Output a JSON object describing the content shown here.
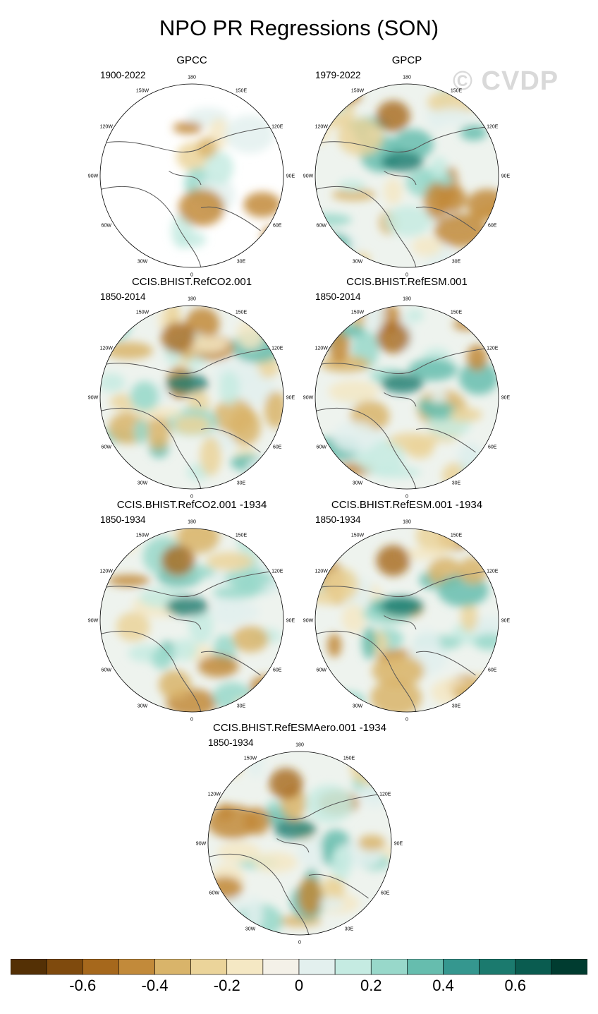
{
  "title": "NPO PR Regressions (SON)",
  "watermark": "© CVDP",
  "lon_labels": [
    "180",
    "150E",
    "120E",
    "90E",
    "60E",
    "30E",
    "0",
    "30W",
    "60W",
    "90W",
    "120W",
    "150W"
  ],
  "panels": [
    {
      "title": "GPCC",
      "period": "1900-2022"
    },
    {
      "title": "GPCP",
      "period": "1979-2022"
    },
    {
      "title": "CCIS.BHIST.RefCO2.001",
      "period": "1850-2014"
    },
    {
      "title": "CCIS.BHIST.RefESM.001",
      "period": "1850-2014"
    },
    {
      "title": "CCIS.BHIST.RefCO2.001 -1934",
      "period": "1850-1934"
    },
    {
      "title": "CCIS.BHIST.RefESM.001 -1934",
      "period": "1850-1934"
    },
    {
      "title": "CCIS.BHIST.RefESMAero.001 -1934",
      "period": "1850-1934"
    }
  ],
  "colorbar": {
    "colors": [
      "#543005",
      "#7f4a0d",
      "#a6681c",
      "#c28a3a",
      "#d9b46a",
      "#ebd49a",
      "#f5e8c4",
      "#f4f1e8",
      "#e3f0ee",
      "#c5ebe2",
      "#98d8ca",
      "#66bdae",
      "#35978f",
      "#1b7a6e",
      "#0a5c50",
      "#003c30"
    ],
    "tick_labels": [
      "-0.6",
      "-0.4",
      "-0.2",
      "0",
      "0.2",
      "0.4",
      "0.6"
    ]
  }
}
